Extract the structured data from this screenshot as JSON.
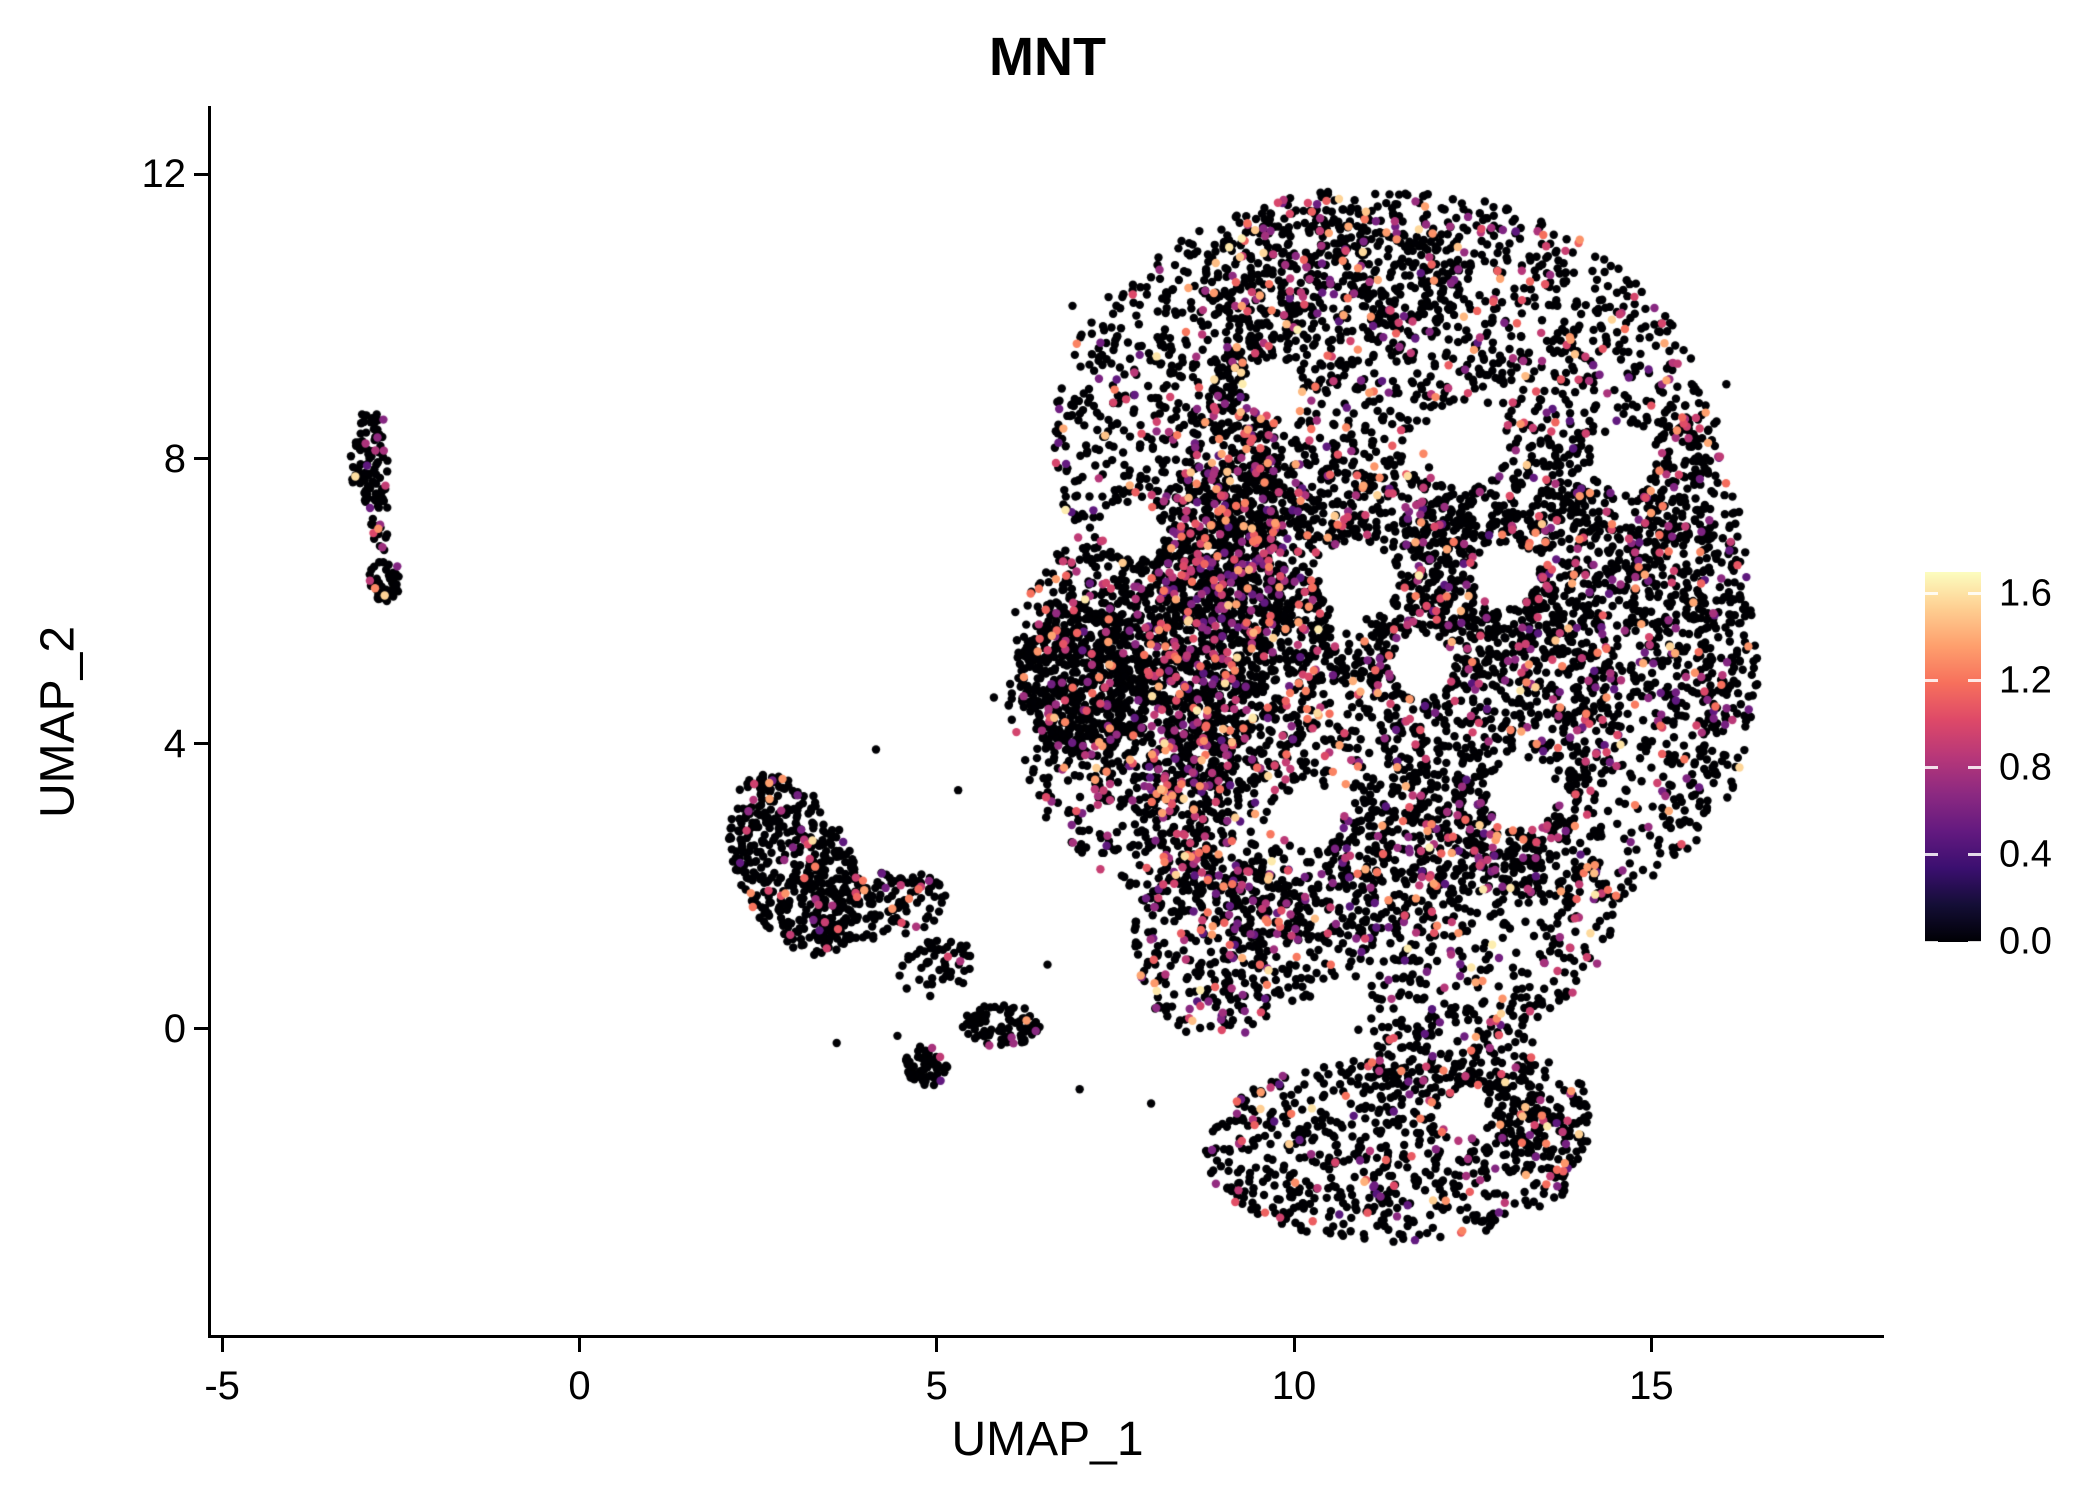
{
  "chart_data": {
    "type": "scatter",
    "title": "MNT",
    "xlabel": "UMAP_1",
    "ylabel": "UMAP_2",
    "xlim": [
      -5.1,
      18.2
    ],
    "ylim": [
      -4.3,
      12.9
    ],
    "x_ticks": [
      -5,
      0,
      5,
      10,
      15
    ],
    "x_tick_labels": [
      "-5",
      "0",
      "5",
      "10",
      "15"
    ],
    "y_ticks": [
      0,
      4,
      8,
      12
    ],
    "y_tick_labels": [
      "0",
      "4",
      "8",
      "12"
    ],
    "grid": false,
    "point_radius_px": 4.2,
    "seed": 42,
    "colorbar": {
      "position": "right",
      "ticks": [
        0.0,
        0.4,
        0.8,
        1.2,
        1.6
      ],
      "tick_labels": [
        "0.0",
        "0.4",
        "0.8",
        "1.2",
        "1.6"
      ],
      "vmin": 0.0,
      "vmax": 1.6,
      "bar_max": 1.7,
      "stops": [
        [
          0.0,
          "#000004"
        ],
        [
          0.1,
          "#140E36"
        ],
        [
          0.2,
          "#3B0F70"
        ],
        [
          0.3,
          "#641A80"
        ],
        [
          0.4,
          "#8C2981"
        ],
        [
          0.5,
          "#B73779"
        ],
        [
          0.6,
          "#DE4968"
        ],
        [
          0.7,
          "#F7705C"
        ],
        [
          0.8,
          "#FE9F6D"
        ],
        [
          0.9,
          "#FECE91"
        ],
        [
          1.0,
          "#FCFDBF"
        ]
      ]
    },
    "value_distribution": {
      "p_nonzero_base": 0.16,
      "tiers": [
        {
          "weight": 0.636,
          "min": 0.45,
          "max": 1.0
        },
        {
          "weight": 0.295,
          "min": 1.0,
          "max": 1.4
        },
        {
          "weight": 0.069,
          "min": 1.4,
          "max": 1.65
        }
      ]
    },
    "clusters": [
      {
        "name": "left-small-upper",
        "cx": -2.92,
        "cy": 8.0,
        "rx": 0.28,
        "ry": 0.75,
        "rot": 0,
        "n": 90,
        "color_weight": 0.7
      },
      {
        "name": "left-small-lower",
        "cx": -2.72,
        "cy": 6.3,
        "rx": 0.24,
        "ry": 0.3,
        "rot": 0,
        "n": 45,
        "color_weight": 0.9
      },
      {
        "name": "left-small-bridge",
        "cx": -2.8,
        "cy": 7.1,
        "rx": 0.14,
        "ry": 0.45,
        "rot": 0,
        "n": 22,
        "color_weight": 0.5
      },
      {
        "name": "mid-left-body",
        "cx": 3.0,
        "cy": 2.3,
        "rx": 0.8,
        "ry": 1.35,
        "rot": 25,
        "n": 450,
        "color_weight": 0.5
      },
      {
        "name": "mid-left-arm",
        "cx": 4.2,
        "cy": 1.7,
        "rx": 0.95,
        "ry": 0.5,
        "rot": 10,
        "n": 150,
        "color_weight": 0.5
      },
      {
        "name": "mid-left-trail",
        "cx": 5.0,
        "cy": 0.85,
        "rx": 0.55,
        "ry": 0.4,
        "rot": 20,
        "n": 55,
        "color_weight": 0.4
      },
      {
        "name": "mid-left-knot",
        "cx": 4.85,
        "cy": -0.52,
        "rx": 0.3,
        "ry": 0.3,
        "rot": 0,
        "n": 60,
        "color_weight": 0.3
      },
      {
        "name": "mid-left-knot2",
        "cx": 5.9,
        "cy": 0.05,
        "rx": 0.55,
        "ry": 0.3,
        "rot": 0,
        "n": 90,
        "color_weight": 0.4
      },
      {
        "name": "main-top",
        "cx": 11.2,
        "cy": 8.3,
        "rx": 4.6,
        "ry": 3.5,
        "rot": 0,
        "n": 2600,
        "color_weight": 1.0
      },
      {
        "name": "main-center",
        "cx": 10.3,
        "cy": 4.6,
        "rx": 4.3,
        "ry": 3.4,
        "rot": 0,
        "n": 2300,
        "color_weight": 1.1
      },
      {
        "name": "main-right",
        "cx": 13.8,
        "cy": 5.0,
        "rx": 2.7,
        "ry": 3.3,
        "rot": 0,
        "n": 1100,
        "color_weight": 0.9
      },
      {
        "name": "main-left",
        "cx": 8.3,
        "cy": 5.2,
        "rx": 2.2,
        "ry": 2.2,
        "rot": 0,
        "n": 650,
        "color_weight": 1.0
      },
      {
        "name": "main-bottom",
        "cx": 11.9,
        "cy": 1.6,
        "rx": 2.6,
        "ry": 1.8,
        "rot": 0,
        "n": 650,
        "color_weight": 1.1
      },
      {
        "name": "dense-left-patch",
        "cx": 7.1,
        "cy": 4.9,
        "rx": 0.95,
        "ry": 1.1,
        "rot": 0,
        "n": 420,
        "color_weight": 0.35
      },
      {
        "name": "dense-band",
        "cx": 8.9,
        "cy": 6.0,
        "rx": 0.75,
        "ry": 3.9,
        "rot": -8,
        "n": 850,
        "color_weight": 1.8
      },
      {
        "name": "top-arc",
        "cx": 10.6,
        "cy": 10.6,
        "rx": 1.9,
        "ry": 0.95,
        "rot": 0,
        "n": 320,
        "color_weight": 0.9
      },
      {
        "name": "bottom-left-arc",
        "cx": 8.9,
        "cy": 1.2,
        "rx": 1.15,
        "ry": 1.35,
        "rot": 0,
        "n": 330,
        "color_weight": 1.3
      },
      {
        "name": "right-band",
        "cx": 15.5,
        "cy": 6.0,
        "rx": 0.85,
        "ry": 2.9,
        "rot": 0,
        "n": 380,
        "color_weight": 0.8
      },
      {
        "name": "neck",
        "cx": 12.2,
        "cy": -0.4,
        "rx": 1.2,
        "ry": 0.65,
        "rot": 0,
        "n": 150,
        "color_weight": 0.8
      },
      {
        "name": "bottom-lobe",
        "cx": 11.4,
        "cy": -1.7,
        "rx": 2.7,
        "ry": 1.3,
        "rot": 0,
        "n": 680,
        "color_weight": 0.9
      },
      {
        "name": "bottom-lobe-right",
        "cx": 13.4,
        "cy": -1.3,
        "rx": 0.8,
        "ry": 0.85,
        "rot": 0,
        "n": 140,
        "color_weight": 0.7
      }
    ],
    "holes": [
      {
        "cx": 10.9,
        "cy": 6.3,
        "r": 0.55
      },
      {
        "cx": 12.4,
        "cy": 8.2,
        "r": 0.6
      },
      {
        "cx": 9.7,
        "cy": 9.0,
        "r": 0.4
      },
      {
        "cx": 13.2,
        "cy": 3.3,
        "r": 0.5
      },
      {
        "cx": 10.2,
        "cy": 2.95,
        "r": 0.45
      },
      {
        "cx": 14.6,
        "cy": 8.0,
        "r": 0.45
      },
      {
        "cx": 7.75,
        "cy": 7.0,
        "r": 0.4
      },
      {
        "cx": 11.8,
        "cy": 5.1,
        "r": 0.45
      },
      {
        "cx": 12.95,
        "cy": 6.35,
        "r": 0.45
      },
      {
        "cx": 10.6,
        "cy": 0.3,
        "r": 0.4
      },
      {
        "cx": 12.4,
        "cy": -1.2,
        "r": 0.35
      }
    ],
    "outliers": [
      {
        "x": 4.15,
        "y": 3.92,
        "v": 0
      },
      {
        "x": 5.3,
        "y": 3.35,
        "v": 0
      },
      {
        "x": 6.35,
        "y": 3.6,
        "v": 0
      },
      {
        "x": 4.45,
        "y": -0.1,
        "v": 0
      },
      {
        "x": 6.55,
        "y": 0.9,
        "v": 0
      },
      {
        "x": 7.0,
        "y": -0.85,
        "v": 0
      },
      {
        "x": 8.0,
        "y": -1.05,
        "v": 0
      },
      {
        "x": 15.3,
        "y": 9.35,
        "v": 0.85
      },
      {
        "x": 16.05,
        "y": 9.05,
        "v": 0
      },
      {
        "x": 13.9,
        "y": 10.9,
        "v": 0
      },
      {
        "x": 12.6,
        "y": 11.45,
        "v": 0
      },
      {
        "x": 6.1,
        "y": 5.85,
        "v": 0
      },
      {
        "x": 5.8,
        "y": 4.65,
        "v": 0
      },
      {
        "x": 6.9,
        "y": 10.15,
        "v": 0
      },
      {
        "x": 3.6,
        "y": -0.2,
        "v": 0
      }
    ]
  }
}
